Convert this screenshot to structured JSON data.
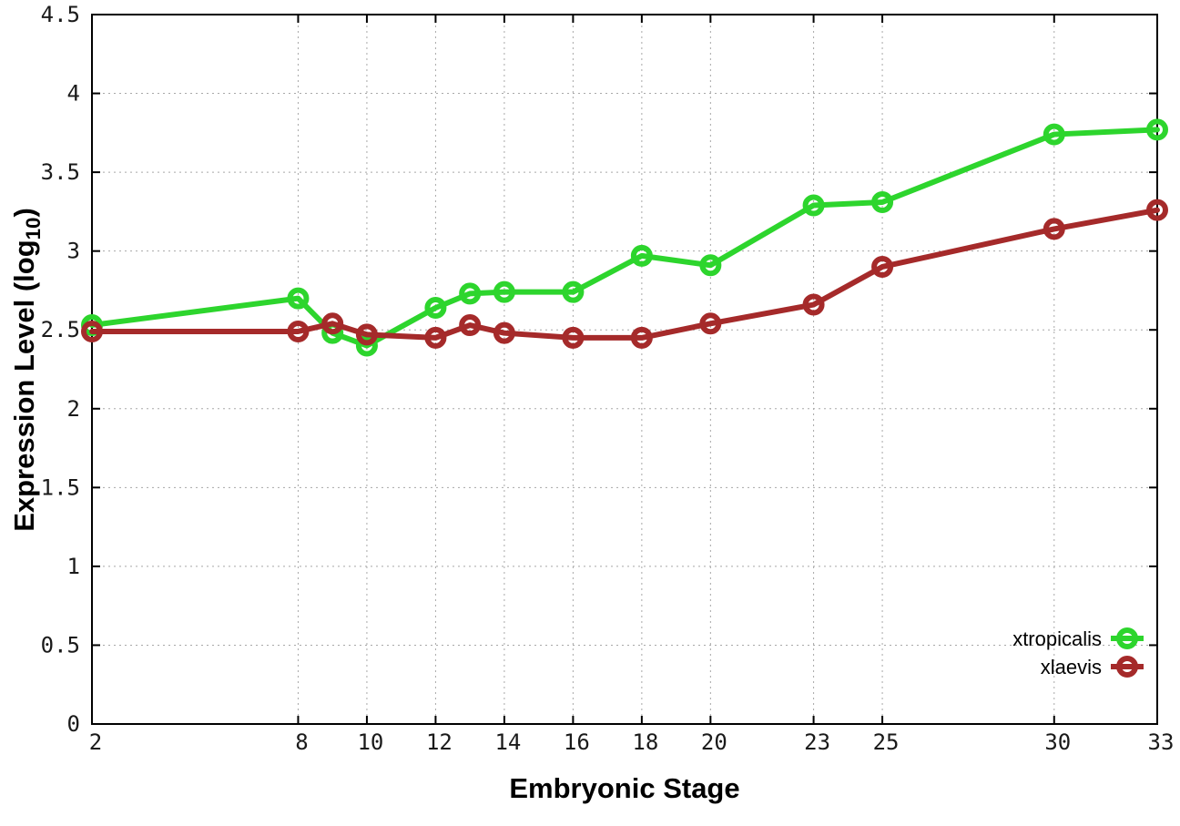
{
  "chart_data": {
    "type": "line",
    "title": "",
    "xlabel": "Embryonic Stage",
    "ylabel": "Expression Level (log10)",
    "ylabel_parts": {
      "prefix": "Expression Level (log",
      "sub": "10",
      "suffix": ")"
    },
    "xlim": [
      2,
      33
    ],
    "ylim": [
      0,
      4.5
    ],
    "grid": true,
    "grid_style": "dotted",
    "marker": "open-circle",
    "legend_position": "bottom-right",
    "x_ticks": {
      "values": [
        2,
        8,
        10,
        12,
        14,
        16,
        18,
        20,
        23,
        25,
        30,
        33
      ],
      "labels": [
        "2",
        "8",
        "10",
        "12",
        "14",
        "16",
        "18",
        "20",
        "23",
        "25",
        "30",
        "33"
      ]
    },
    "y_ticks": {
      "values": [
        0,
        0.5,
        1,
        1.5,
        2,
        2.5,
        3,
        3.5,
        4,
        4.5
      ],
      "labels": [
        "0",
        "0.5",
        "1",
        "1.5",
        "2",
        "2.5",
        "3",
        "3.5",
        "4",
        "4.5"
      ]
    },
    "x": [
      2,
      8,
      9,
      10,
      12,
      13,
      14,
      16,
      18,
      20,
      23,
      25,
      30,
      33
    ],
    "series": [
      {
        "name": "xtropicalis",
        "color": "#2dd52d",
        "values": [
          2.53,
          2.7,
          2.48,
          2.4,
          2.64,
          2.73,
          2.74,
          2.74,
          2.97,
          2.91,
          3.29,
          3.31,
          3.74,
          3.77
        ]
      },
      {
        "name": "xlaevis",
        "color": "#a52a2a",
        "values": [
          2.49,
          2.49,
          2.54,
          2.47,
          2.45,
          2.53,
          2.48,
          2.45,
          2.45,
          2.54,
          2.66,
          2.9,
          3.14,
          3.26
        ]
      }
    ],
    "colors": {
      "background": "#ffffff",
      "border": "#000000",
      "grid": "#a8a8a8",
      "tick_text": "#1a1a1a"
    }
  }
}
